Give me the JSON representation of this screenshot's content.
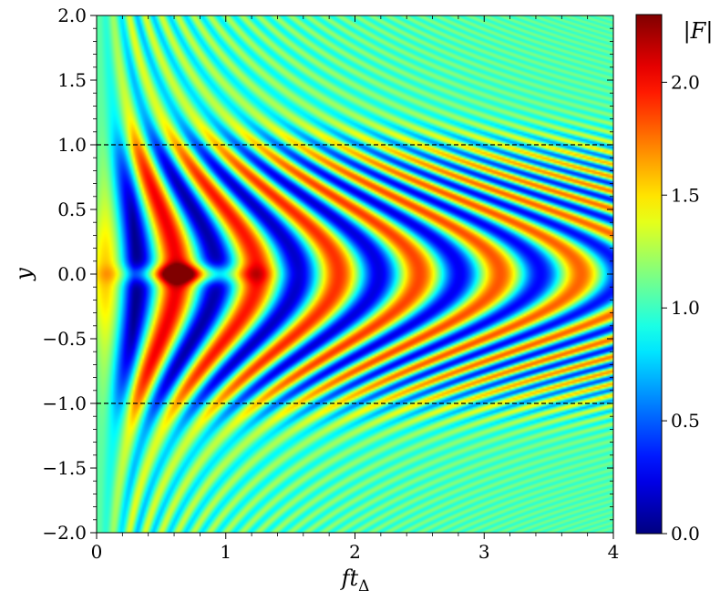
{
  "chart_data": {
    "type": "heatmap",
    "title": "",
    "xlabel": "ftΔ",
    "xlabel_parts": {
      "base": "ft",
      "subscript": "Δ"
    },
    "ylabel": "y",
    "xlim": [
      0,
      4
    ],
    "ylim": [
      -2.0,
      2.0
    ],
    "xticks": [
      0,
      1,
      2,
      3,
      4
    ],
    "xtick_labels": [
      "0",
      "1",
      "2",
      "3",
      "4"
    ],
    "yticks": [
      -2.0,
      -1.5,
      -1.0,
      -0.5,
      0.0,
      0.5,
      1.0,
      1.5,
      2.0
    ],
    "ytick_labels": [
      "−2.0",
      "−1.5",
      "−1.0",
      "−0.5",
      "0.0",
      "0.5",
      "1.0",
      "1.5",
      "2.0"
    ],
    "colormap": "jet",
    "colorbar": {
      "label": "|F|",
      "range": [
        0.0,
        2.3
      ],
      "ticks": [
        0.0,
        0.5,
        1.0,
        1.5,
        2.0
      ],
      "tick_labels": [
        "0.0",
        "0.5",
        "1.0",
        "1.5",
        "2.0"
      ]
    },
    "reference_lines": [
      {
        "axis": "y",
        "value": 1.0,
        "style": "dashed",
        "color": "#000000"
      },
      {
        "axis": "y",
        "value": -1.0,
        "style": "dashed",
        "color": "#000000"
      }
    ],
    "features": {
      "max_value_approx": 2.3,
      "max_location": {
        "x": 0.7,
        "y": 0.0
      },
      "background_value": 1.0,
      "pattern": "hyperbolic interference fringes opening from the left edge, symmetric about y = 0"
    }
  }
}
